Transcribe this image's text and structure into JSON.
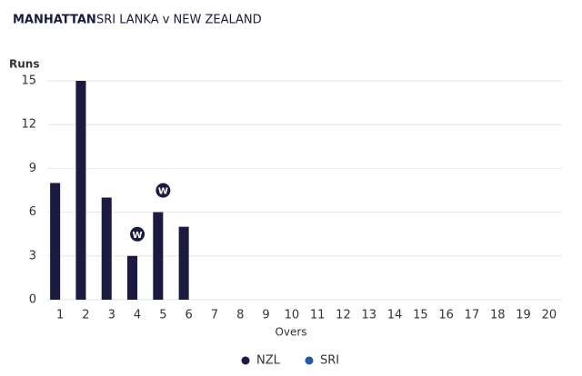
{
  "chart_data": {
    "type": "bar",
    "title": "MANHATTAN",
    "subtitle": "SRI LANKA v NEW ZEALAND",
    "y_label": "Runs",
    "x_label": "Overs",
    "categories": [
      "1",
      "2",
      "3",
      "4",
      "5",
      "6",
      "7",
      "8",
      "9",
      "10",
      "11",
      "12",
      "13",
      "14",
      "15",
      "16",
      "17",
      "18",
      "19",
      "20"
    ],
    "series": [
      {
        "name": "NZL",
        "color": "#1b1a3f",
        "values": [
          8,
          15,
          7,
          3,
          6,
          5,
          null,
          null,
          null,
          null,
          null,
          null,
          null,
          null,
          null,
          null,
          null,
          null,
          null,
          null
        ]
      },
      {
        "name": "SRI",
        "color": "#1f5aa6",
        "values": [
          null,
          null,
          null,
          null,
          null,
          null,
          null,
          null,
          null,
          null,
          null,
          null,
          null,
          null,
          null,
          null,
          null,
          null,
          null,
          null
        ]
      }
    ],
    "wickets": [
      {
        "over": 4,
        "label": "W"
      },
      {
        "over": 5,
        "label": "W"
      }
    ],
    "ylim": [
      0,
      15
    ],
    "yticks": [
      0,
      3,
      6,
      9,
      12,
      15
    ],
    "grid": true,
    "legend": "bottom"
  }
}
